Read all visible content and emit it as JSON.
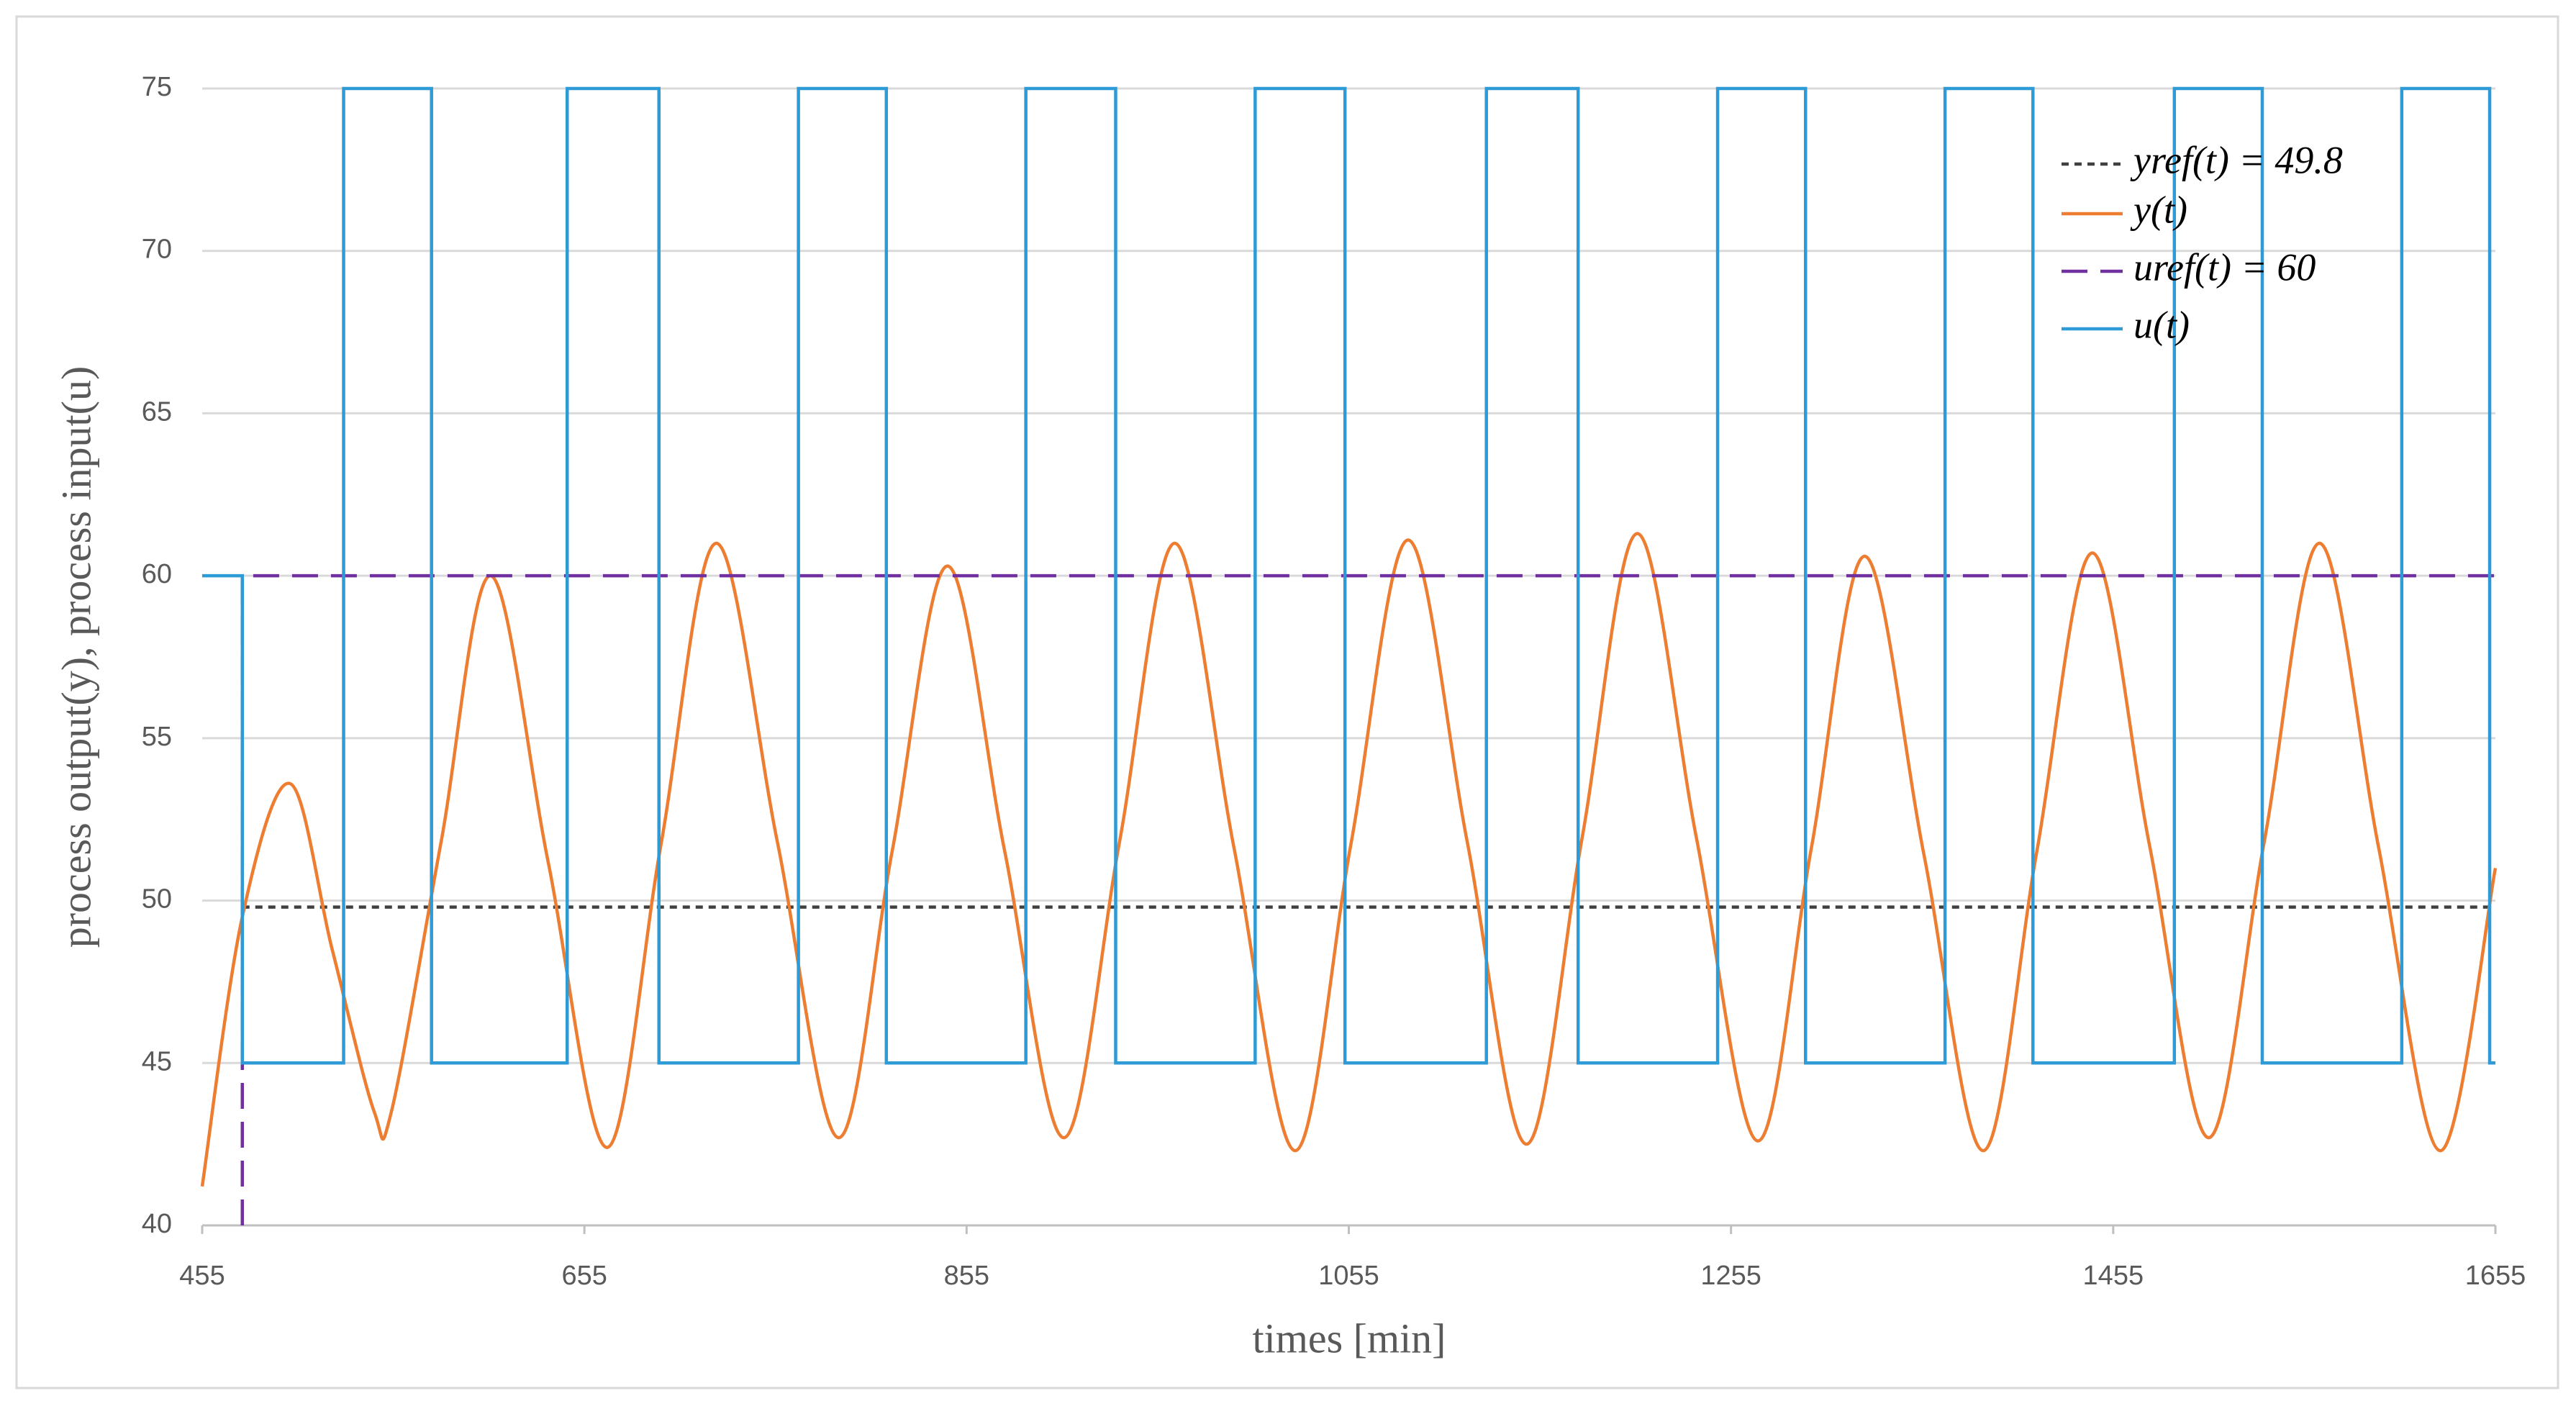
{
  "chart_data": {
    "type": "line",
    "x_label": "times [min]",
    "y_label": "process output(y), process input(u)",
    "xlim": [
      455,
      1655
    ],
    "xticks": [
      455,
      655,
      855,
      1055,
      1255,
      1455,
      1655
    ],
    "ylim": [
      40,
      75
    ],
    "yticks": [
      40,
      45,
      50,
      55,
      60,
      65,
      70,
      75
    ],
    "grid": true,
    "legend": "upper right",
    "series": [
      {
        "name": "yref(t) = 49.8",
        "color": "#404040",
        "dash": "short",
        "x": [
          476,
          1655
        ],
        "values": [
          49.8,
          49.8
        ]
      },
      {
        "name": "y(t)",
        "color": "#ed7d31",
        "dash": "solid",
        "x": [
          455,
          476,
          501,
          523,
          545,
          554,
          580,
          606,
          636,
          667,
          695,
          724,
          756,
          788,
          816,
          845,
          875,
          906,
          935,
          964,
          995,
          1027,
          1056,
          1086,
          1117,
          1148,
          1177,
          1206,
          1237,
          1269,
          1297,
          1325,
          1356,
          1387,
          1415,
          1444,
          1474,
          1505,
          1534,
          1563,
          1594,
          1626,
          1655
        ],
        "values": [
          41.2,
          49.5,
          53.6,
          48.5,
          43.5,
          43.5,
          51.8,
          60,
          51.2,
          42.4,
          51.7,
          61,
          51.8,
          42.7,
          51.5,
          60.3,
          51.5,
          42.7,
          51.8,
          61,
          51.6,
          42.3,
          51.7,
          61.1,
          51.8,
          42.5,
          51.9,
          61.3,
          51.9,
          42.6,
          51.6,
          60.6,
          51.4,
          42.3,
          51.5,
          60.7,
          51.7,
          42.7,
          51.8,
          61,
          51.6,
          42.3,
          51
        ]
      },
      {
        "name": "uref(t) = 60",
        "color": "#7030a0",
        "dash": "long",
        "x": [
          476,
          476,
          1655
        ],
        "values": [
          40,
          60,
          60
        ]
      },
      {
        "name": "u(t)",
        "color": "#2e9bd6",
        "dash": "solid",
        "x": [
          455,
          476,
          476,
          529,
          529,
          575,
          575,
          646,
          646,
          694,
          694,
          767,
          767,
          813,
          813,
          886,
          886,
          933,
          933,
          1006,
          1006,
          1053,
          1053,
          1127,
          1127,
          1175,
          1175,
          1248,
          1248,
          1294,
          1294,
          1367,
          1367,
          1413,
          1413,
          1487,
          1487,
          1533,
          1533,
          1606,
          1606,
          1652,
          1652,
          1655
        ],
        "values": [
          60,
          60,
          45,
          45,
          75,
          75,
          45,
          45,
          75,
          75,
          45,
          45,
          75,
          75,
          45,
          45,
          75,
          75,
          45,
          45,
          75,
          75,
          45,
          45,
          75,
          75,
          45,
          45,
          75,
          75,
          45,
          45,
          75,
          75,
          45,
          45,
          75,
          75,
          45,
          45,
          75,
          75,
          45,
          45
        ]
      }
    ]
  }
}
